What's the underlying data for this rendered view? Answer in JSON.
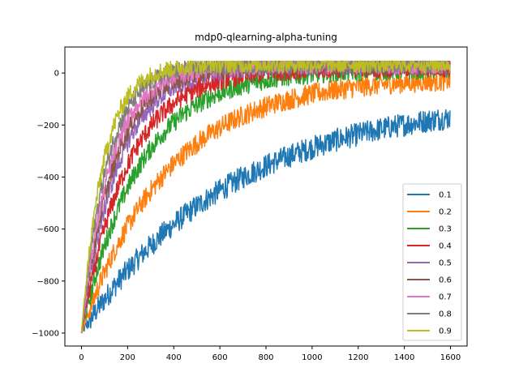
{
  "chart_data": {
    "type": "line",
    "title": "mdp0-qlearning-alpha-tuning",
    "xlabel": "",
    "ylabel": "",
    "xlim": [
      -72,
      1672
    ],
    "ylim": [
      -1050,
      100
    ],
    "x_ticks": [
      0,
      200,
      400,
      600,
      800,
      1000,
      1200,
      1400,
      1600
    ],
    "x_tick_labels": [
      "0",
      "200",
      "400",
      "600",
      "800",
      "1000",
      "1200",
      "1400",
      "1600"
    ],
    "y_ticks": [
      -1000,
      -800,
      -600,
      -400,
      -200,
      0
    ],
    "y_tick_labels": [
      "−1000",
      "−800",
      "−600",
      "−400",
      "−200",
      "0"
    ],
    "grid": false,
    "legend_position": "lower-right",
    "x_range": [
      0,
      1599
    ],
    "start_value": -1000,
    "series": [
      {
        "name": "0.1",
        "color": "#1f77b4",
        "end_value": -95,
        "rate_per_episode": 0.00155,
        "noise": 45
      },
      {
        "name": "0.2",
        "color": "#ff7f0e",
        "end_value": -15,
        "rate_per_episode": 0.0027,
        "noise": 40
      },
      {
        "name": "0.3",
        "color": "#2ca02c",
        "end_value": 15,
        "rate_per_episode": 0.004,
        "noise": 38
      },
      {
        "name": "0.4",
        "color": "#d62728",
        "end_value": 22,
        "rate_per_episode": 0.005,
        "noise": 38
      },
      {
        "name": "0.5",
        "color": "#9467bd",
        "end_value": 30,
        "rate_per_episode": 0.0062,
        "noise": 36
      },
      {
        "name": "0.6",
        "color": "#8c564b",
        "end_value": 30,
        "rate_per_episode": 0.007,
        "noise": 36
      },
      {
        "name": "0.7",
        "color": "#e377c2",
        "end_value": 32,
        "rate_per_episode": 0.0078,
        "noise": 36
      },
      {
        "name": "0.8",
        "color": "#7f7f7f",
        "end_value": 33,
        "rate_per_episode": 0.009,
        "noise": 34
      },
      {
        "name": "0.9",
        "color": "#bcbd22",
        "end_value": 35,
        "rate_per_episode": 0.0105,
        "noise": 34
      }
    ]
  }
}
